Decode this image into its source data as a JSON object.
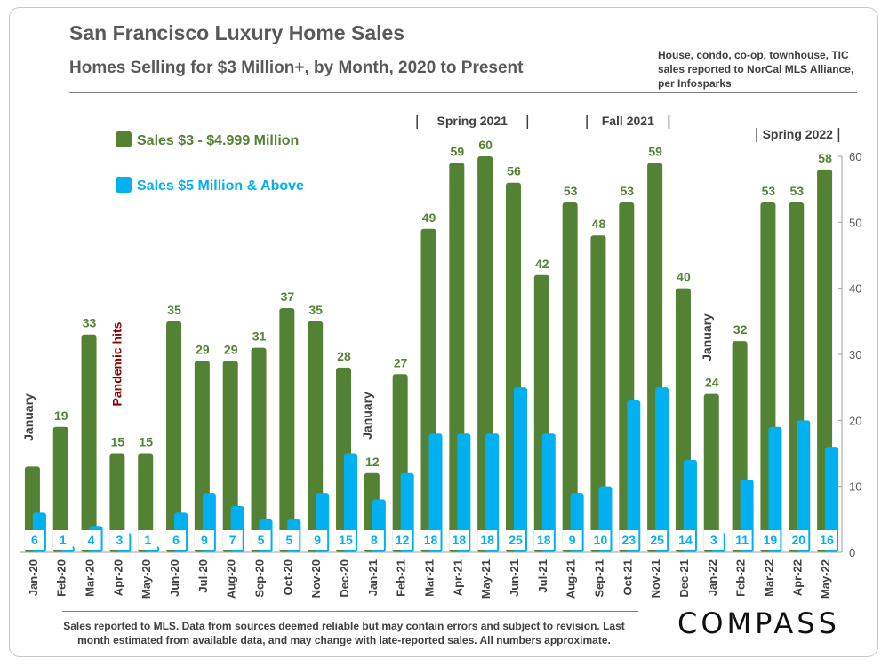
{
  "header": {
    "title": "San Francisco Luxury Home Sales",
    "subtitle": "Homes Selling for $3 Million+, by Month, 2020 to Present",
    "note": "House, condo, co-op, townhouse, TIC sales reported to NorCal MLS Alliance, per Infosparks"
  },
  "footer": {
    "text": "Sales reported to MLS. Data from sources deemed reliable but may contain errors and subject to revision.  Last month estimated from available data, and may change with late-reported sales. All numbers approximate.",
    "logo": "COMPASS"
  },
  "colors": {
    "green": "#548235",
    "blue": "#00B0F0",
    "annotation_red": "#8B0000",
    "text": "#595959"
  },
  "chart_data": {
    "type": "bar",
    "categories": [
      "Jan-20",
      "Feb-20",
      "Mar-20",
      "Apr-20",
      "May-20",
      "Jun-20",
      "Jul-20",
      "Aug-20",
      "Sep-20",
      "Oct-20",
      "Nov-20",
      "Dec-20",
      "Jan-21",
      "Feb-21",
      "Mar-21",
      "Apr-21",
      "May-21",
      "Jun-21",
      "Jul-21",
      "Aug-21",
      "Sep-21",
      "Oct-21",
      "Nov-21",
      "Dec-21",
      "Jan-22",
      "Feb-22",
      "Mar-22",
      "Apr-22",
      "May-22"
    ],
    "series": [
      {
        "name": "Sales $3 - $4.999 Million",
        "color": "#548235",
        "values": [
          13,
          19,
          33,
          15,
          15,
          35,
          29,
          29,
          31,
          37,
          35,
          28,
          12,
          27,
          49,
          59,
          60,
          56,
          42,
          53,
          48,
          53,
          59,
          40,
          24,
          32,
          53,
          53,
          58
        ],
        "labels": [
          "",
          "19",
          "33",
          "15",
          "15",
          "35",
          "29",
          "29",
          "31",
          "37",
          "35",
          "28",
          "12",
          "27",
          "49",
          "59",
          "60",
          "56",
          "42",
          "53",
          "48",
          "53",
          "59",
          "40",
          "24",
          "32",
          "53",
          "53",
          "58"
        ]
      },
      {
        "name": "Sales $5 Million & Above",
        "color": "#00B0F0",
        "values": [
          6,
          1,
          4,
          3,
          1,
          6,
          9,
          7,
          5,
          5,
          9,
          15,
          8,
          12,
          18,
          18,
          18,
          25,
          18,
          9,
          10,
          23,
          25,
          14,
          3,
          11,
          19,
          20,
          16
        ]
      }
    ],
    "yaxis": {
      "ylim": [
        0,
        60
      ],
      "ticks": [
        0,
        10,
        20,
        30,
        40,
        50,
        60
      ],
      "position": "right"
    },
    "grid": false,
    "legend": "top-left",
    "annotations": [
      {
        "text": "January",
        "at": 0,
        "orientation": "vertical"
      },
      {
        "text": "Pandemic hits",
        "at": 3,
        "orientation": "vertical",
        "color": "#8B0000"
      },
      {
        "text": "January",
        "at": 12,
        "orientation": "vertical"
      },
      {
        "text": "January",
        "at": 24,
        "orientation": "vertical"
      }
    ],
    "season_brackets": [
      {
        "text": "Spring 2021",
        "from": 14,
        "to": 17
      },
      {
        "text": "Fall 2021",
        "from": 20,
        "to": 22
      },
      {
        "text": "Spring 2022",
        "from": 26,
        "to": 28
      }
    ]
  }
}
